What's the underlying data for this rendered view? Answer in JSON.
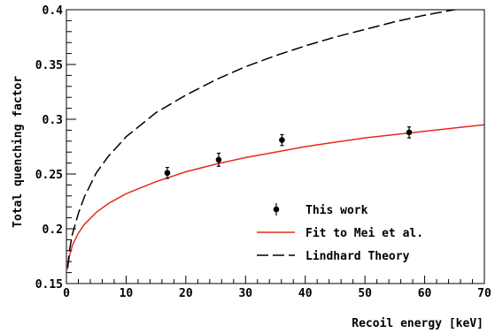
{
  "colors": {
    "fit": "#e8291c",
    "lindhard": "#000000",
    "data": "#000000",
    "axis": "#000000"
  },
  "chart_data": {
    "type": "scatter",
    "xlabel": "Recoil energy [keV]",
    "ylabel": "Total quenching factor",
    "xlim": [
      0,
      70
    ],
    "ylim": [
      0.15,
      0.4
    ],
    "x_ticks": [
      "0",
      "10",
      "20",
      "30",
      "40",
      "50",
      "60",
      "70"
    ],
    "y_ticks": [
      "0.15",
      "0.2",
      "0.25",
      "0.3",
      "0.35",
      "0.4"
    ],
    "grid": false,
    "legend_position": "lower-right",
    "legend": [
      "This work",
      "Fit to Mei et al.",
      "Lindhard Theory"
    ],
    "series": [
      {
        "name": "This work",
        "kind": "points-with-errorbars",
        "x": [
          16.9,
          25.5,
          36.1,
          57.4
        ],
        "y": [
          0.251,
          0.263,
          0.281,
          0.288
        ],
        "yerr": [
          0.005,
          0.006,
          0.005,
          0.005
        ]
      },
      {
        "name": "Fit to Mei et al.",
        "kind": "line",
        "x": [
          0.2,
          0.5,
          1,
          2,
          3,
          5,
          7,
          10,
          15,
          20,
          25,
          30,
          35,
          40,
          45,
          50,
          55,
          60,
          65,
          70
        ],
        "y": [
          0.163,
          0.175,
          0.185,
          0.196,
          0.204,
          0.215,
          0.223,
          0.232,
          0.243,
          0.252,
          0.259,
          0.265,
          0.27,
          0.275,
          0.279,
          0.283,
          0.286,
          0.289,
          0.292,
          0.295
        ]
      },
      {
        "name": "Lindhard Theory",
        "kind": "dashed-line",
        "x": [
          0.2,
          0.5,
          1,
          2,
          3,
          5,
          7,
          10,
          15,
          20,
          25,
          30,
          35,
          40,
          45,
          50,
          55,
          60,
          65,
          70
        ],
        "y": [
          0.165,
          0.18,
          0.195,
          0.214,
          0.229,
          0.251,
          0.266,
          0.284,
          0.306,
          0.322,
          0.336,
          0.348,
          0.358,
          0.367,
          0.375,
          0.382,
          0.389,
          0.395,
          0.4,
          0.405
        ]
      }
    ]
  }
}
